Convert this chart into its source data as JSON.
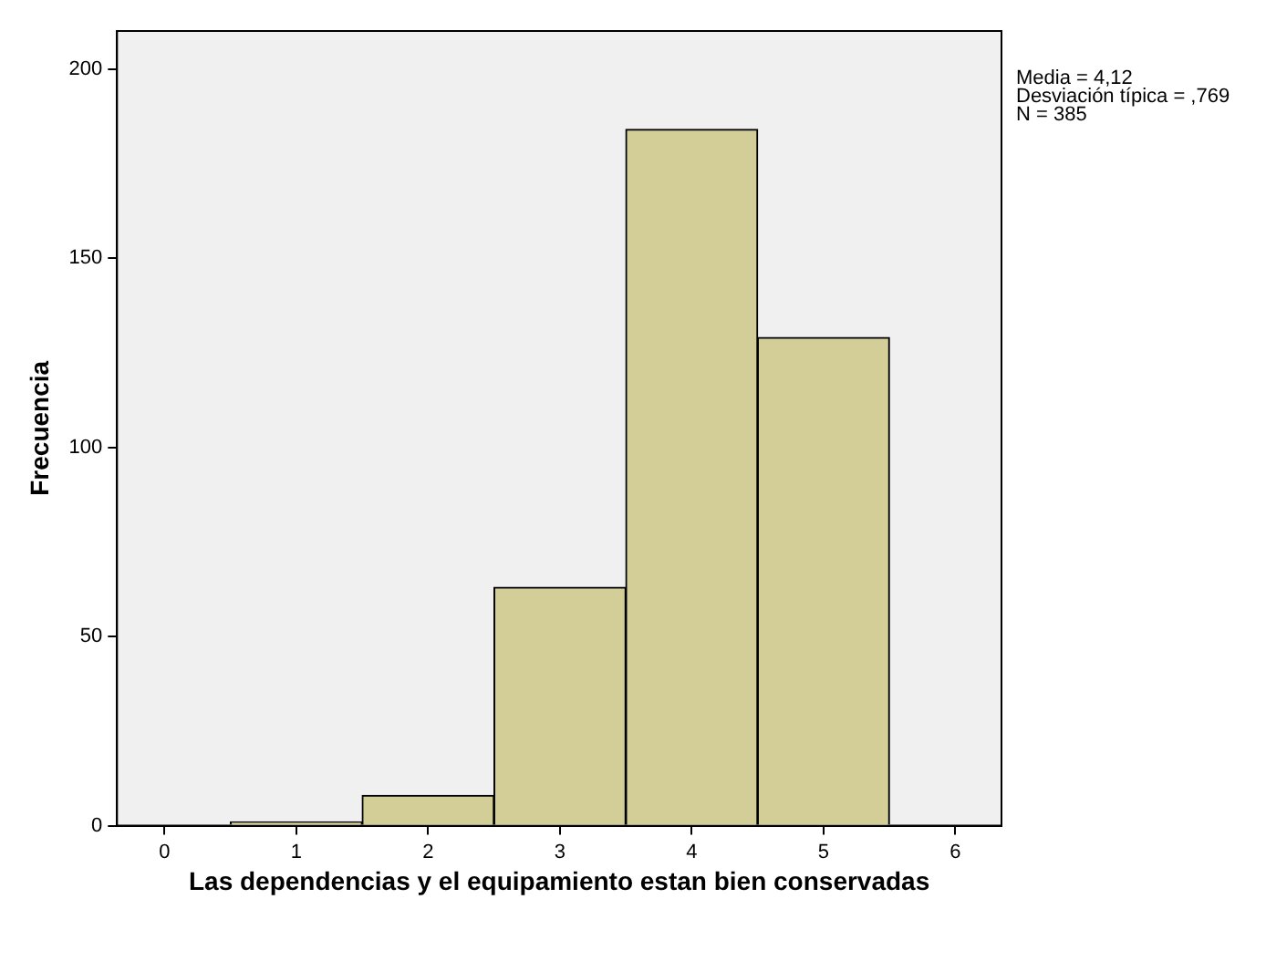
{
  "chart_data": {
    "type": "histogram",
    "xlabel": "Las dependencias y el equipamiento estan bien conservadas",
    "ylabel": "Frecuencia",
    "bins": [
      0.5,
      1.5,
      2.5,
      3.5,
      4.5,
      5.5
    ],
    "values": [
      1,
      8,
      63,
      184,
      129
    ],
    "color": "#d3ce97",
    "xlim": [
      -0.36,
      6.35
    ],
    "xticks": [
      0,
      1,
      2,
      3,
      4,
      5,
      6
    ],
    "ylim": [
      0,
      210
    ],
    "yticks": [
      0,
      50,
      100,
      150,
      200
    ],
    "grid": false,
    "legend": false,
    "annotations": [
      "Media = 4,12",
      "Desviación típica = ,769",
      "N = 385"
    ]
  }
}
